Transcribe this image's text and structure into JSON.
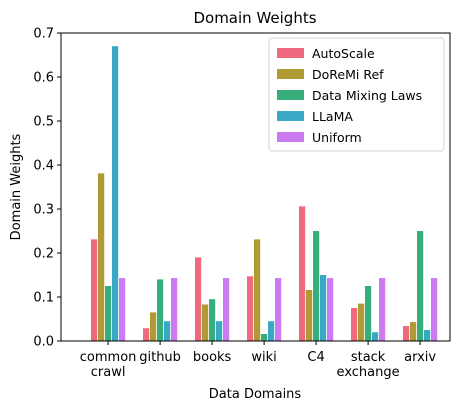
{
  "chart_data": {
    "type": "bar",
    "title": "Domain Weights",
    "xlabel": "Data Domains",
    "ylabel": "Domain Weights",
    "ylim": [
      0,
      0.7
    ],
    "yticks": [
      "0.0",
      "0.1",
      "0.2",
      "0.3",
      "0.4",
      "0.5",
      "0.6",
      "0.7"
    ],
    "categories": [
      [
        "common",
        "crawl"
      ],
      [
        "github"
      ],
      [
        "books"
      ],
      [
        "wiki"
      ],
      [
        "C4"
      ],
      [
        "stack",
        "exchange"
      ],
      [
        "arxiv"
      ]
    ],
    "legend_position": "top-right",
    "grid": false,
    "series": [
      {
        "name": "AutoScale",
        "color": "#f0697f",
        "values": [
          0.231,
          0.029,
          0.19,
          0.147,
          0.306,
          0.075,
          0.034
        ]
      },
      {
        "name": "DoReMi Ref",
        "color": "#b09a34",
        "values": [
          0.381,
          0.065,
          0.083,
          0.231,
          0.116,
          0.085,
          0.043
        ]
      },
      {
        "name": "Data Mixing Laws",
        "color": "#36ad7a",
        "values": [
          0.125,
          0.14,
          0.095,
          0.016,
          0.25,
          0.125,
          0.25
        ]
      },
      {
        "name": "LLaMA",
        "color": "#38a8c4",
        "values": [
          0.67,
          0.045,
          0.045,
          0.045,
          0.15,
          0.02,
          0.025
        ]
      },
      {
        "name": "Uniform",
        "color": "#cc7af2",
        "values": [
          0.143,
          0.143,
          0.143,
          0.143,
          0.143,
          0.143,
          0.143
        ]
      }
    ]
  }
}
